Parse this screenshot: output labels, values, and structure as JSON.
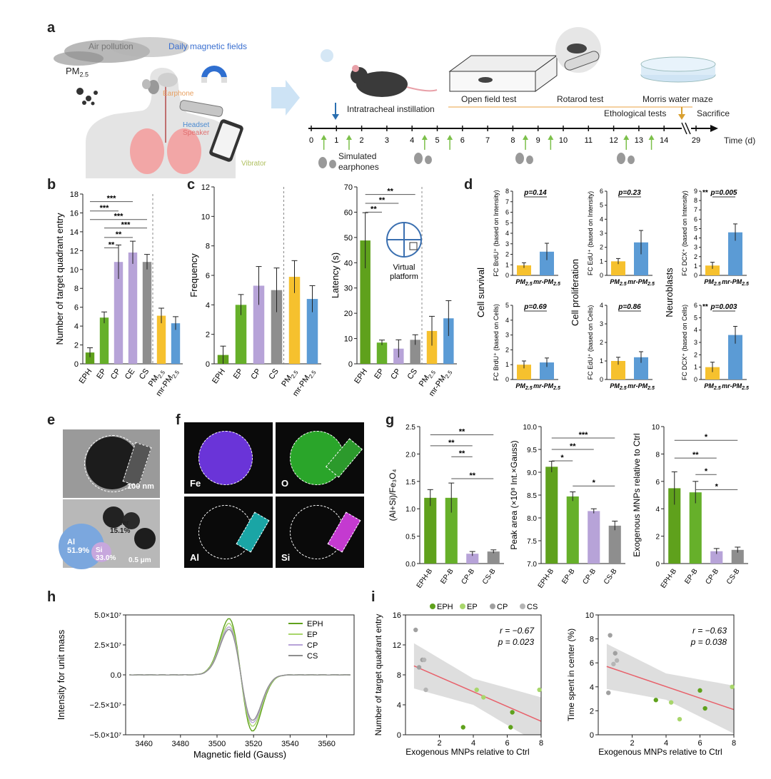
{
  "colors": {
    "EPH": "#5fa11c",
    "EP": "#66b02a",
    "CP": "#b7a3d8",
    "CS": "#8e8e8e",
    "CE": "#b7a3d8",
    "PM": "#f6c12e",
    "MR": "#5b9bd5",
    "light_green": "#a8d66b",
    "red_line": "#e8606a",
    "grey_band": "#dedede"
  },
  "panels": {
    "a": "a",
    "b": "b",
    "c": "c",
    "d": "d",
    "e": "e",
    "f": "f",
    "g": "g",
    "h": "h",
    "i": "i"
  },
  "panel_a": {
    "air_pollution": "Air pollution",
    "daily_fields": "Daily magnetic fields",
    "pm_label": "PM",
    "pm_sub": "2.5",
    "earphone": "Earphone",
    "headset": "Headset",
    "speaker": "Speaker",
    "vibrator": "Vibrator",
    "instillation": "Intratracheal instillation",
    "open_field": "Open field test",
    "rotarod": "Rotarod test",
    "morris": "Morris water maze",
    "ethological": "Ethological tests",
    "sacrifice": "Sacrifice",
    "simulated": "Simulated",
    "earphones": "earphones",
    "time_label": "Time (d)",
    "ticks": [
      "0",
      "1",
      "2",
      "3",
      "4",
      "5",
      "6",
      "7",
      "8",
      "9",
      "10",
      "11",
      "12",
      "13",
      "14",
      "29"
    ]
  },
  "chart_data": [
    {
      "id": "b",
      "type": "bar",
      "ylabel": "Number of target quadrant entry",
      "ylim": [
        0,
        18
      ],
      "yticks": [
        "0",
        "2",
        "4",
        "6",
        "8",
        "10",
        "12",
        "14",
        "16",
        "18"
      ],
      "categories": [
        "EPH",
        "EP",
        "CP",
        "CE",
        "CS",
        "PM",
        "mr-PM"
      ],
      "category_subs": [
        "",
        "",
        "",
        "",
        "",
        "2.5",
        "2.5"
      ],
      "values": [
        1.2,
        4.9,
        10.8,
        11.8,
        10.8,
        5.1,
        4.3
      ],
      "errors": [
        0.5,
        0.6,
        1.8,
        1.2,
        0.8,
        0.8,
        0.7
      ],
      "significance": [
        "***",
        "***",
        "***",
        "***",
        "**",
        "**"
      ]
    },
    {
      "id": "c1",
      "type": "bar",
      "ylabel": "Frequency",
      "ylim": [
        0,
        12
      ],
      "yticks": [
        "0",
        "2",
        "4",
        "6",
        "8",
        "10",
        "12"
      ],
      "categories": [
        "EPH",
        "EP",
        "CP",
        "CS",
        "PM",
        "mr-PM"
      ],
      "category_subs": [
        "",
        "",
        "",
        "",
        "2.5",
        "2.5"
      ],
      "values": [
        0.6,
        4.0,
        5.3,
        5.0,
        5.9,
        4.4
      ],
      "errors": [
        0.6,
        0.7,
        1.3,
        1.5,
        1.1,
        0.9
      ]
    },
    {
      "id": "c2",
      "type": "bar",
      "ylabel": "Latency (s)",
      "ylim": [
        0,
        70
      ],
      "yticks": [
        "0",
        "10",
        "20",
        "30",
        "40",
        "50",
        "60",
        "70"
      ],
      "categories": [
        "EPH",
        "EP",
        "CP",
        "CS",
        "PM",
        "mr-PM"
      ],
      "category_subs": [
        "",
        "",
        "",
        "",
        "2.5",
        "2.5"
      ],
      "values": [
        48.8,
        8.4,
        6.0,
        9.5,
        13.0,
        18.0
      ],
      "errors": [
        11.0,
        1.0,
        3.5,
        2.0,
        5.8,
        7.0
      ],
      "significance": [
        "**",
        "**",
        "**"
      ],
      "inset_text": [
        "Virtual",
        "platform"
      ]
    },
    {
      "id": "d",
      "type": "bar",
      "row_titles": [
        "Cell survival",
        "Cell proliferation",
        "Neuroblasts"
      ],
      "subplots": [
        {
          "ylabel": "FC BrdU⁺ (based on Intensity)",
          "ylim": [
            0,
            8
          ],
          "yticks": [
            "0",
            "1",
            "2",
            "3",
            "4",
            "5",
            "6",
            "7",
            "8"
          ],
          "values": [
            0.95,
            2.25
          ],
          "errors": [
            0.25,
            0.8
          ],
          "p": "p=0.14",
          "stars": ""
        },
        {
          "ylabel": "FC EdU⁺ (based on Intensity)",
          "ylim": [
            0,
            6
          ],
          "yticks": [
            "0",
            "1",
            "2",
            "3",
            "4",
            "5",
            "6"
          ],
          "values": [
            1.0,
            2.35
          ],
          "errors": [
            0.2,
            0.85
          ],
          "p": "p=0.23",
          "stars": ""
        },
        {
          "ylabel": "FC DCX⁺ (based on Intensity)",
          "ylim": [
            0,
            9
          ],
          "yticks": [
            "0",
            "1",
            "2",
            "3",
            "4",
            "5",
            "6",
            "7",
            "8",
            "9"
          ],
          "values": [
            1.05,
            4.6
          ],
          "errors": [
            0.35,
            0.9
          ],
          "p": "p=0.005",
          "stars": "**"
        },
        {
          "ylabel": "FC BrdU⁺ (based on Cells)",
          "ylim": [
            0,
            5
          ],
          "yticks": [
            "0",
            "1",
            "2",
            "3",
            "4",
            "5"
          ],
          "values": [
            1.0,
            1.15
          ],
          "errors": [
            0.25,
            0.3
          ],
          "p": "p=0.69",
          "stars": ""
        },
        {
          "ylabel": "FC EdU⁺ (based on Cells)",
          "ylim": [
            0,
            4
          ],
          "yticks": [
            "0",
            "1",
            "2",
            "3",
            "4"
          ],
          "values": [
            1.0,
            1.2
          ],
          "errors": [
            0.2,
            0.3
          ],
          "p": "p=0.86",
          "stars": ""
        },
        {
          "ylabel": "FC DCX⁺ (based on Cells)",
          "ylim": [
            0,
            6
          ],
          "yticks": [
            "0",
            "1",
            "2",
            "3",
            "4",
            "5",
            "6"
          ],
          "values": [
            1.0,
            3.6
          ],
          "errors": [
            0.4,
            0.7
          ],
          "p": "p=0.003",
          "stars": "**"
        }
      ],
      "categories": [
        "PM",
        "mr-PM"
      ],
      "category_subs": [
        "2.5",
        "2.5"
      ]
    },
    {
      "id": "g1",
      "type": "bar",
      "ylabel": "(Al+Si)/Fe₃O₄",
      "ylim": [
        0,
        2.5
      ],
      "yticks": [
        "0.0",
        "0.5",
        "1.0",
        "1.5",
        "2.0",
        "2.5"
      ],
      "categories": [
        "EPH-B",
        "EP-B",
        "CP-B",
        "CS-B"
      ],
      "values": [
        1.2,
        1.2,
        0.18,
        0.22
      ],
      "errors": [
        0.15,
        0.27,
        0.04,
        0.03
      ],
      "significance": [
        "**",
        "**",
        "**",
        "**"
      ]
    },
    {
      "id": "g2",
      "type": "bar",
      "ylabel": "Peak area (×10⁸ Int.×Gauss)",
      "ylim": [
        7.0,
        10.0
      ],
      "yticks": [
        "7.0",
        "7.5",
        "8.0",
        "8.5",
        "9.0",
        "9.5",
        "10.0"
      ],
      "categories": [
        "EPH-B",
        "EP-B",
        "CP-B",
        "CS-B"
      ],
      "values": [
        9.12,
        8.47,
        8.15,
        7.83
      ],
      "errors": [
        0.12,
        0.1,
        0.05,
        0.1
      ],
      "significance": [
        "***",
        "**",
        "*",
        "*"
      ]
    },
    {
      "id": "g3",
      "type": "bar",
      "ylabel": "Exogenous MNPs relative to Ctrl",
      "ylim": [
        0,
        10
      ],
      "yticks": [
        "0",
        "2",
        "4",
        "6",
        "8",
        "10"
      ],
      "categories": [
        "EPH-B",
        "EP-B",
        "CP-B",
        "CS-B"
      ],
      "values": [
        5.5,
        5.2,
        0.9,
        1.0
      ],
      "errors": [
        1.2,
        0.8,
        0.2,
        0.2
      ],
      "significance": [
        "*",
        "**",
        "*",
        "*"
      ]
    },
    {
      "id": "h",
      "type": "line",
      "xlabel": "Magnetic field (Gauss)",
      "ylabel": "Intensity for unit mass",
      "xlim": [
        3450,
        3575
      ],
      "xticks": [
        "3460",
        "3480",
        "3500",
        "3520",
        "3540",
        "3560"
      ],
      "yticks": [
        "−5.0×10⁷",
        "−2.5×10⁷",
        "0.0",
        "2.5×10⁷",
        "5.0×10⁷"
      ],
      "ylim": [
        -50000000.0,
        50000000.0
      ],
      "series": [
        {
          "name": "EPH",
          "peak": 47000000.0,
          "trough": -45000000.0
        },
        {
          "name": "EP",
          "peak": 43000000.0,
          "trough": -41000000.0
        },
        {
          "name": "CP",
          "peak": 40000000.0,
          "trough": -38000000.0
        },
        {
          "name": "CS",
          "peak": 38000000.0,
          "trough": -36000000.0
        }
      ]
    },
    {
      "id": "i1",
      "type": "scatter",
      "xlabel": "Exogenous MNPs relative to Ctrl",
      "ylabel": "Number of target quadrant entry",
      "xlim": [
        0,
        8
      ],
      "ylim": [
        0,
        16
      ],
      "xticks": [
        "2",
        "4",
        "6",
        "8"
      ],
      "yticks": [
        "0",
        "4",
        "8",
        "12",
        "16"
      ],
      "r": "r = −0.67",
      "p": "p = 0.023",
      "points": [
        {
          "g": "EPH",
          "x": 3.4,
          "y": 1.0
        },
        {
          "g": "EPH",
          "x": 6.2,
          "y": 1.0
        },
        {
          "g": "EPH",
          "x": 6.3,
          "y": 3.0
        },
        {
          "g": "EP",
          "x": 4.2,
          "y": 6.0
        },
        {
          "g": "EP",
          "x": 4.6,
          "y": 5.0
        },
        {
          "g": "EP",
          "x": 7.9,
          "y": 6.0
        },
        {
          "g": "CP",
          "x": 0.6,
          "y": 14.0
        },
        {
          "g": "CP",
          "x": 1.0,
          "y": 10.0
        },
        {
          "g": "CS",
          "x": 1.1,
          "y": 10.0
        },
        {
          "g": "CS",
          "x": 1.2,
          "y": 6.0
        },
        {
          "g": "CP",
          "x": 0.8,
          "y": 9.0
        }
      ],
      "fit": [
        [
          0.5,
          9.2
        ],
        [
          8.0,
          1.8
        ]
      ]
    },
    {
      "id": "i2",
      "type": "scatter",
      "xlabel": "Exogenous MNPs relative to Ctrl",
      "ylabel": "Time spent in center (%)",
      "xlim": [
        0,
        8
      ],
      "ylim": [
        0,
        10
      ],
      "xticks": [
        "2",
        "4",
        "6",
        "8"
      ],
      "yticks": [
        "0",
        "2",
        "4",
        "6",
        "8",
        "10"
      ],
      "r": "r = −0.63",
      "p": "p = 0.038",
      "points": [
        {
          "g": "EPH",
          "x": 3.4,
          "y": 2.9
        },
        {
          "g": "EPH",
          "x": 6.0,
          "y": 3.7
        },
        {
          "g": "EPH",
          "x": 6.3,
          "y": 2.2
        },
        {
          "g": "EP",
          "x": 4.3,
          "y": 2.7
        },
        {
          "g": "EP",
          "x": 4.8,
          "y": 1.3
        },
        {
          "g": "EP",
          "x": 7.9,
          "y": 4.0
        },
        {
          "g": "CP",
          "x": 0.7,
          "y": 8.3
        },
        {
          "g": "CP",
          "x": 1.0,
          "y": 6.8
        },
        {
          "g": "CS",
          "x": 1.1,
          "y": 6.2
        },
        {
          "g": "CS",
          "x": 0.9,
          "y": 5.9
        },
        {
          "g": "CP",
          "x": 0.6,
          "y": 3.5
        }
      ],
      "fit": [
        [
          0.5,
          5.7
        ],
        [
          8.0,
          2.1
        ]
      ]
    }
  ],
  "legend_i": [
    "EPH",
    "EP",
    "CP",
    "CS"
  ],
  "panel_e": {
    "scale_top": "100 nm",
    "scale_bottom": "0.5 μm",
    "other_label": "Other",
    "other_pct": "15.1%",
    "al_label": "Al",
    "al_pct": "51.9%",
    "si_label": "Si",
    "si_pct": "33.0%"
  },
  "panel_f": {
    "labels": [
      "Fe",
      "O",
      "Al",
      "Si"
    ]
  }
}
